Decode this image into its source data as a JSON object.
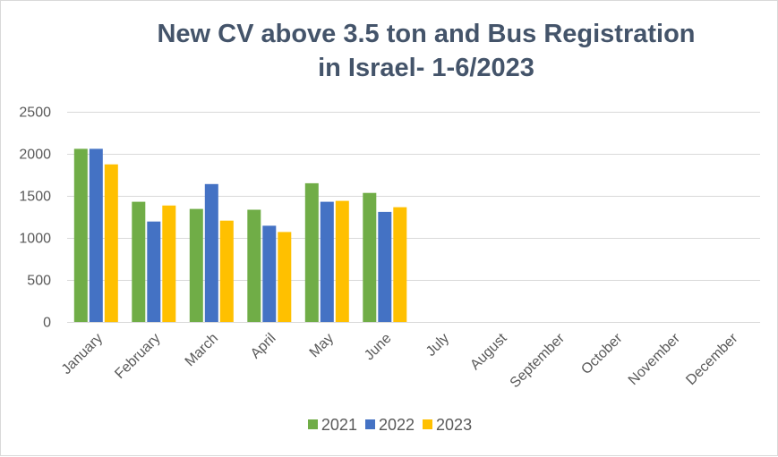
{
  "chart_data": {
    "type": "bar",
    "title_lines": [
      "New CV above 3.5 ton and Bus Registration",
      "in Israel- 1-6/2023"
    ],
    "categories": [
      "January",
      "February",
      "March",
      "April",
      "May",
      "June",
      "July",
      "August",
      "September",
      "October",
      "November",
      "December"
    ],
    "series": [
      {
        "name": "2021",
        "color": "#70ad47",
        "values": [
          2060,
          1430,
          1345,
          1335,
          1650,
          1535,
          null,
          null,
          null,
          null,
          null,
          null
        ]
      },
      {
        "name": "2022",
        "color": "#4472c4",
        "values": [
          2060,
          1195,
          1640,
          1145,
          1430,
          1310,
          null,
          null,
          null,
          null,
          null,
          null
        ]
      },
      {
        "name": "2023",
        "color": "#ffc000",
        "values": [
          1875,
          1385,
          1205,
          1070,
          1440,
          1365,
          null,
          null,
          null,
          null,
          null,
          null
        ]
      }
    ],
    "ylim": [
      0,
      2500
    ],
    "yticks": [
      0,
      500,
      1000,
      1500,
      2000,
      2500
    ],
    "grid": true,
    "legend_position": "bottom"
  }
}
